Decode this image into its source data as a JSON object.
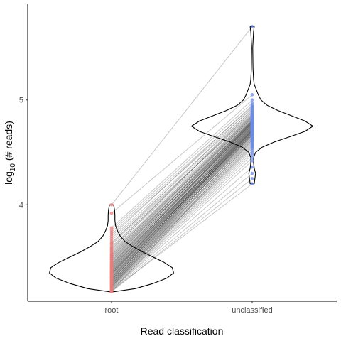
{
  "chart_data": {
    "type": "violin",
    "xlabel": "Read classification",
    "ylabel_base": "log",
    "ylabel_sub": "10",
    "ylabel_rest": " (# reads)",
    "categories": [
      "root",
      "unclassified"
    ],
    "yticks": [
      4,
      5
    ],
    "ylim": [
      3.08,
      5.92
    ],
    "colors": {
      "root": "#f07b7b",
      "unclassified": "#6b8be8",
      "line": "#000000",
      "violin": "#000000"
    },
    "violins": [
      {
        "category": "root",
        "profile": [
          [
            3.17,
            0.03
          ],
          [
            3.2,
            0.35
          ],
          [
            3.25,
            0.62
          ],
          [
            3.3,
            0.82
          ],
          [
            3.35,
            0.92
          ],
          [
            3.4,
            0.9
          ],
          [
            3.45,
            0.78
          ],
          [
            3.5,
            0.62
          ],
          [
            3.55,
            0.46
          ],
          [
            3.6,
            0.32
          ],
          [
            3.65,
            0.2
          ],
          [
            3.7,
            0.13
          ],
          [
            3.75,
            0.09
          ],
          [
            3.8,
            0.06
          ],
          [
            3.85,
            0.05
          ],
          [
            3.9,
            0.05
          ],
          [
            3.95,
            0.045
          ],
          [
            4.0,
            0.03
          ]
        ]
      },
      {
        "category": "unclassified",
        "profile": [
          [
            4.2,
            0.03
          ],
          [
            4.25,
            0.04
          ],
          [
            4.3,
            0.05
          ],
          [
            4.35,
            0.03
          ],
          [
            4.4,
            0.02
          ],
          [
            4.45,
            0.02
          ],
          [
            4.5,
            0.05
          ],
          [
            4.55,
            0.15
          ],
          [
            4.6,
            0.33
          ],
          [
            4.65,
            0.56
          ],
          [
            4.7,
            0.78
          ],
          [
            4.75,
            0.9
          ],
          [
            4.8,
            0.78
          ],
          [
            4.85,
            0.58
          ],
          [
            4.9,
            0.38
          ],
          [
            4.95,
            0.22
          ],
          [
            5.0,
            0.13
          ],
          [
            5.05,
            0.09
          ],
          [
            5.1,
            0.06
          ],
          [
            5.15,
            0.03
          ],
          [
            5.2,
            0.02
          ],
          [
            5.3,
            0.012
          ],
          [
            5.5,
            0.008
          ],
          [
            5.65,
            0.02
          ],
          [
            5.7,
            0.03
          ]
        ]
      }
    ],
    "pairs": [
      [
        4.0,
        5.7
      ],
      [
        3.92,
        5.05
      ],
      [
        3.78,
        5.0
      ],
      [
        3.76,
        4.97
      ],
      [
        3.74,
        4.94
      ],
      [
        3.72,
        4.92
      ],
      [
        3.7,
        4.95
      ],
      [
        3.68,
        4.9
      ],
      [
        3.66,
        4.88
      ],
      [
        3.64,
        4.86
      ],
      [
        3.62,
        4.87
      ],
      [
        3.6,
        4.85
      ],
      [
        3.58,
        4.84
      ],
      [
        3.56,
        4.83
      ],
      [
        3.55,
        4.82
      ],
      [
        3.54,
        4.81
      ],
      [
        3.53,
        4.86
      ],
      [
        3.52,
        4.8
      ],
      [
        3.51,
        4.79
      ],
      [
        3.5,
        4.78
      ],
      [
        3.49,
        4.8
      ],
      [
        3.48,
        4.77
      ],
      [
        3.47,
        4.78
      ],
      [
        3.46,
        4.76
      ],
      [
        3.45,
        4.79
      ],
      [
        3.44,
        4.75
      ],
      [
        3.43,
        4.77
      ],
      [
        3.42,
        4.74
      ],
      [
        3.41,
        4.76
      ],
      [
        3.4,
        4.73
      ],
      [
        3.4,
        4.78
      ],
      [
        3.39,
        4.72
      ],
      [
        3.38,
        4.75
      ],
      [
        3.38,
        4.7
      ],
      [
        3.37,
        4.73
      ],
      [
        3.36,
        4.71
      ],
      [
        3.36,
        4.76
      ],
      [
        3.35,
        4.69
      ],
      [
        3.35,
        4.74
      ],
      [
        3.34,
        4.72
      ],
      [
        3.34,
        4.68
      ],
      [
        3.33,
        4.7
      ],
      [
        3.33,
        4.75
      ],
      [
        3.32,
        4.67
      ],
      [
        3.32,
        4.71
      ],
      [
        3.31,
        4.69
      ],
      [
        3.31,
        4.73
      ],
      [
        3.3,
        4.66
      ],
      [
        3.3,
        4.7
      ],
      [
        3.29,
        4.68
      ],
      [
        3.29,
        4.64
      ],
      [
        3.28,
        4.67
      ],
      [
        3.28,
        4.71
      ],
      [
        3.27,
        4.65
      ],
      [
        3.27,
        4.62
      ],
      [
        3.26,
        4.66
      ],
      [
        3.26,
        4.6
      ],
      [
        3.25,
        4.63
      ],
      [
        3.25,
        4.58
      ],
      [
        3.24,
        4.61
      ],
      [
        3.24,
        4.56
      ],
      [
        3.23,
        4.59
      ],
      [
        3.23,
        4.55
      ],
      [
        3.22,
        4.57
      ],
      [
        3.22,
        4.52
      ],
      [
        3.21,
        4.54
      ],
      [
        3.21,
        4.5
      ],
      [
        3.2,
        4.48
      ],
      [
        3.2,
        4.45
      ],
      [
        3.19,
        4.42
      ],
      [
        3.19,
        4.36
      ],
      [
        3.18,
        4.3
      ],
      [
        3.18,
        4.2
      ],
      [
        3.17,
        4.25
      ],
      [
        3.17,
        4.62
      ],
      [
        3.57,
        4.91
      ],
      [
        3.46,
        4.84
      ],
      [
        3.43,
        4.82
      ],
      [
        3.39,
        4.8
      ],
      [
        3.37,
        4.79
      ],
      [
        3.63,
        4.93
      ],
      [
        3.59,
        4.89
      ],
      [
        3.52,
        4.83
      ],
      [
        3.48,
        4.81
      ],
      [
        3.42,
        4.78
      ],
      [
        3.3,
        4.74
      ],
      [
        3.28,
        4.72
      ],
      [
        3.26,
        4.69
      ],
      [
        3.24,
        4.67
      ],
      [
        3.22,
        4.64
      ],
      [
        3.34,
        4.77
      ],
      [
        3.44,
        4.8
      ],
      [
        3.5,
        4.85
      ],
      [
        3.41,
        4.71
      ],
      [
        3.36,
        4.68
      ]
    ]
  }
}
